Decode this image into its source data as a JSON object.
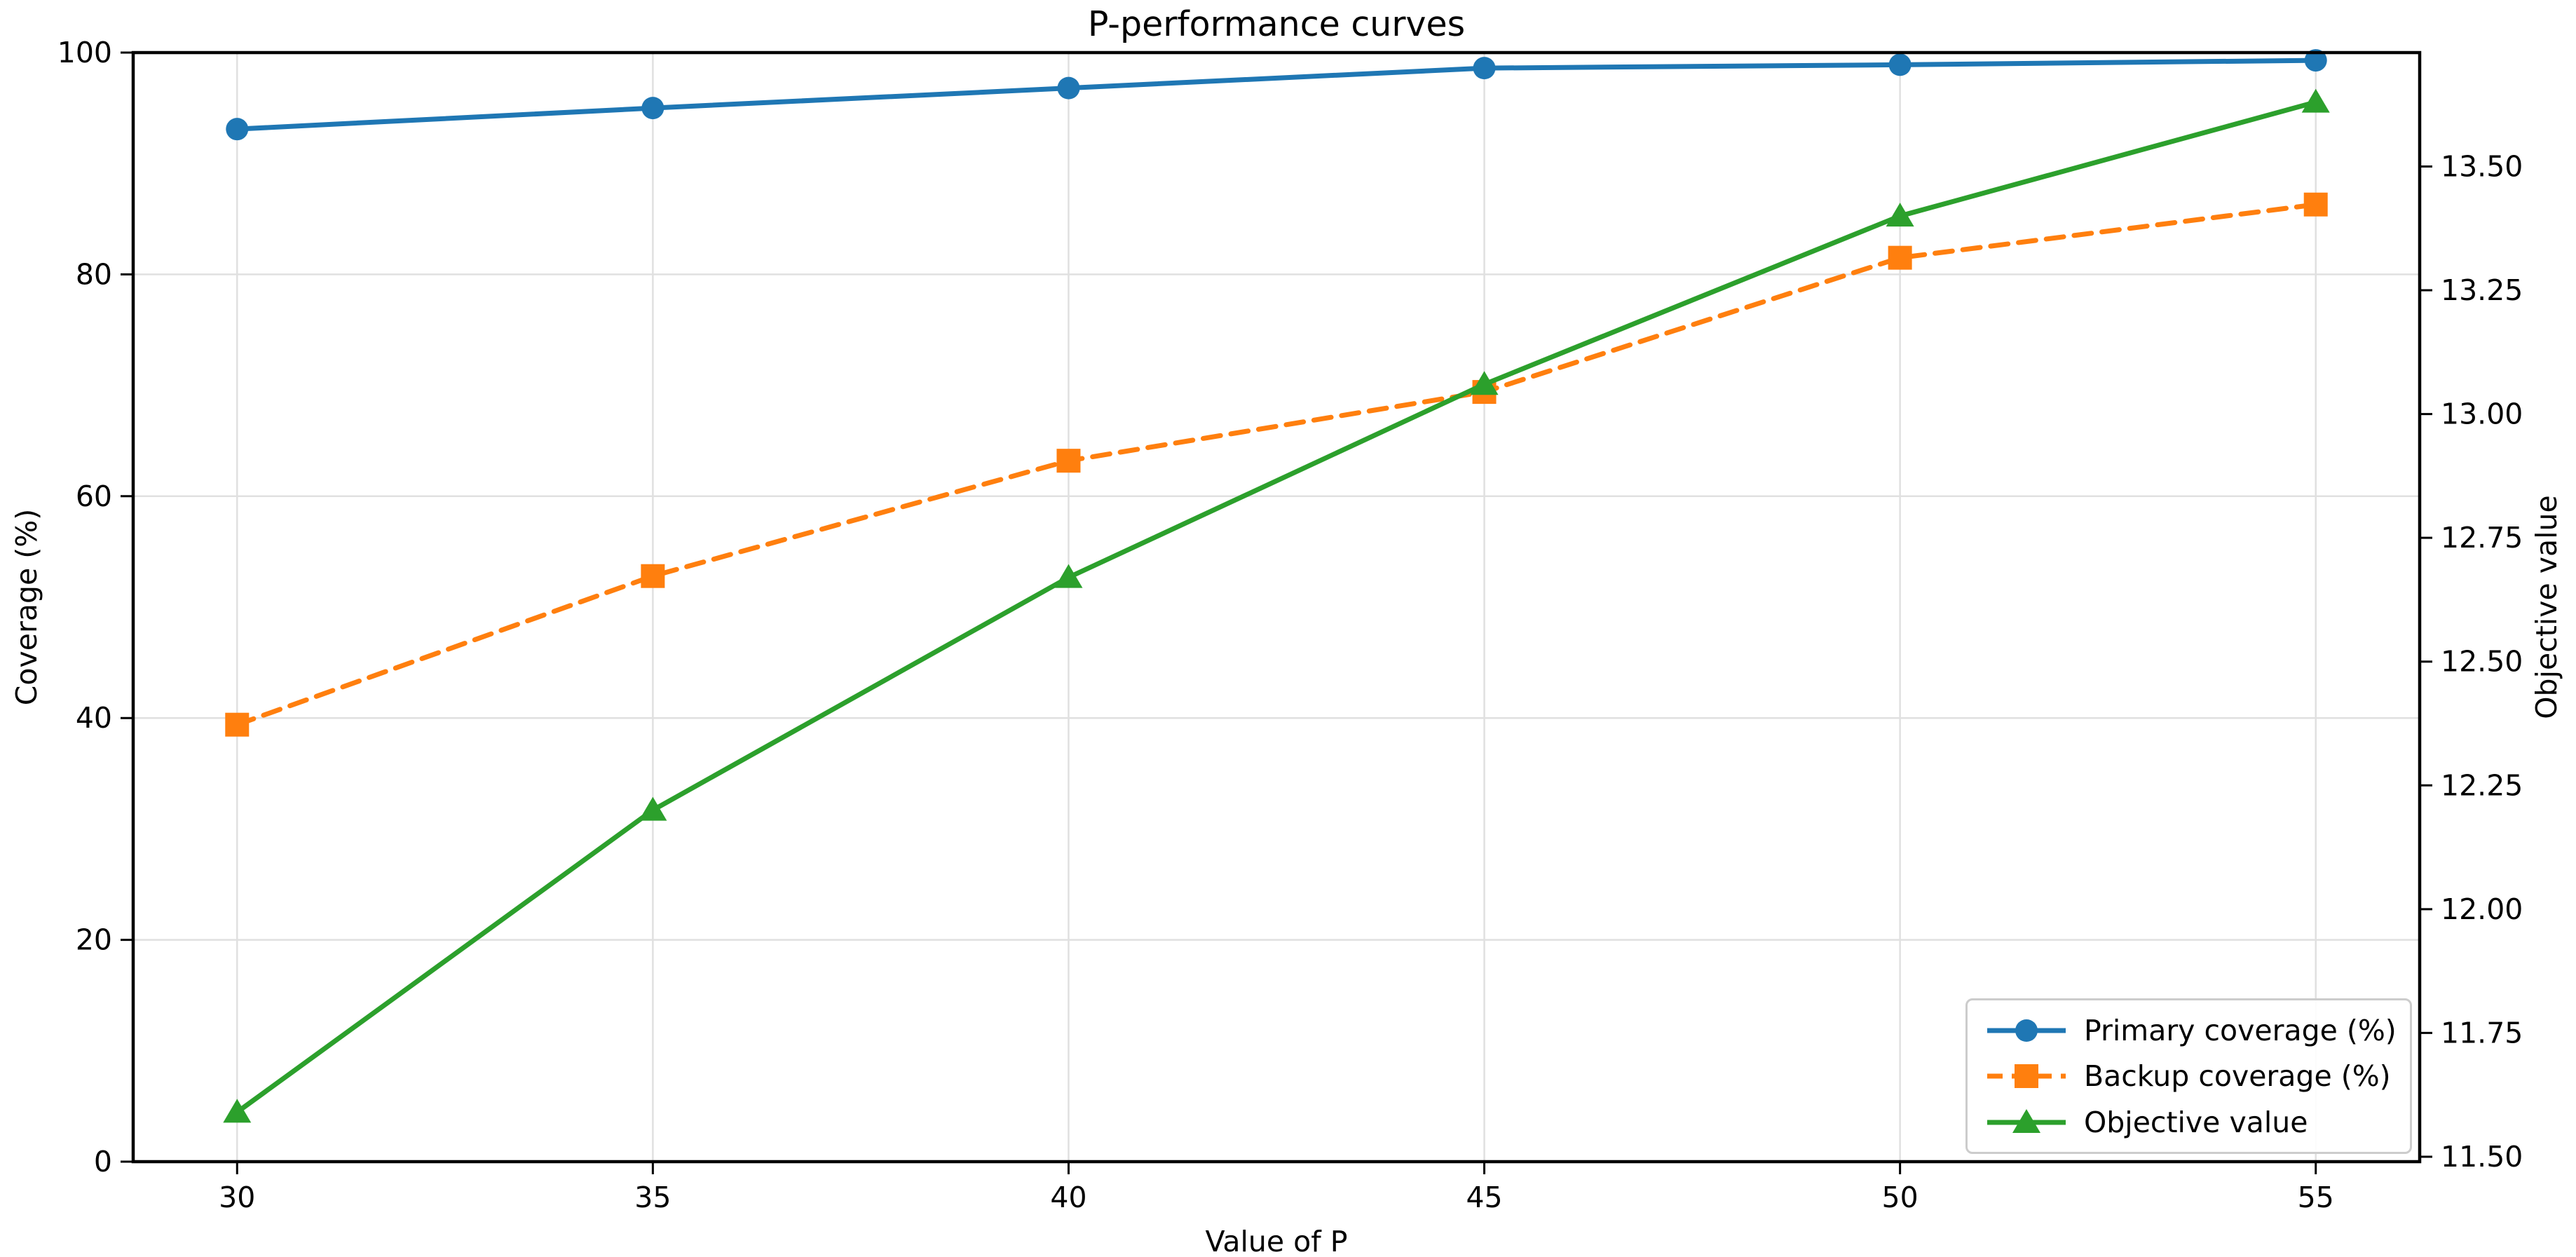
{
  "chart_data": {
    "type": "line",
    "title": "P-performance curves",
    "xlabel": "Value of P",
    "ylabel_left": "Coverage (%)",
    "ylabel_right": "Objective value",
    "x": [
      30,
      35,
      40,
      45,
      50,
      55
    ],
    "series": [
      {
        "name": "Primary coverage (%)",
        "axis": "left",
        "color": "#1f77b4",
        "marker": "circle",
        "linestyle": "solid",
        "values": [
          93.1,
          95.0,
          96.8,
          98.6,
          98.9,
          99.3
        ]
      },
      {
        "name": "Backup coverage (%)",
        "axis": "left",
        "color": "#ff7f0e",
        "marker": "square",
        "linestyle": "dashed",
        "values": [
          39.4,
          52.8,
          63.2,
          69.4,
          81.5,
          86.3
        ]
      },
      {
        "name": "Objective value",
        "axis": "right",
        "color": "#2ca02c",
        "marker": "triangle",
        "linestyle": "solid",
        "values": [
          11.59,
          12.2,
          12.67,
          13.06,
          13.4,
          13.63
        ]
      }
    ],
    "x_ticks": [
      "30",
      "35",
      "40",
      "45",
      "50",
      "55"
    ],
    "y_ticks_left": [
      "0",
      "20",
      "40",
      "60",
      "80",
      "100"
    ],
    "y_ticks_right": [
      "11.50",
      "11.75",
      "12.00",
      "12.25",
      "12.50",
      "12.75",
      "13.00",
      "13.25",
      "13.50"
    ],
    "xlim": [
      28.75,
      56.25
    ],
    "ylim_left": [
      0,
      100
    ],
    "ylim_right": [
      11.49,
      13.73
    ],
    "grid": true,
    "legend_position": "lower right"
  },
  "style": {
    "grid_color": "#e0e0e0",
    "spine_color": "#000000",
    "tick_color": "#000000",
    "text_color": "#000000",
    "background": "#ffffff",
    "legend_border": "#cccccc"
  }
}
